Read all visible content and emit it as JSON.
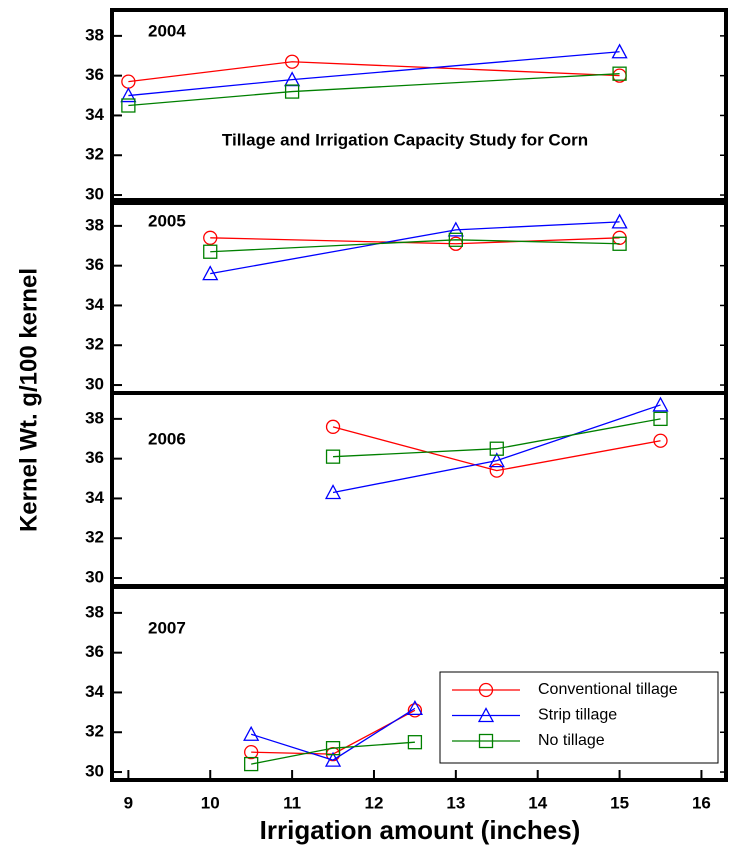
{
  "chart_data": [
    {
      "type": "line",
      "title": "Tillage and Irrigation Capacity Study for Corn",
      "label": "2004",
      "ylabel": "Kernel Wt. g/100 kernel",
      "xlim": [
        8.8,
        16.3
      ],
      "ylim": [
        29.6,
        39.3
      ],
      "yticks": [
        30,
        32,
        34,
        36,
        38
      ],
      "series": [
        {
          "color": "#ff0000",
          "marker": "circle",
          "x": [
            9,
            11,
            15
          ],
          "values": [
            35.7,
            36.7,
            36.0
          ]
        },
        {
          "color": "#0000ff",
          "marker": "triangle",
          "x": [
            9,
            11,
            15
          ],
          "values": [
            35.0,
            35.8,
            37.2
          ]
        },
        {
          "color": "#008000",
          "marker": "square",
          "x": [
            9,
            11,
            15
          ],
          "values": [
            34.5,
            35.2,
            36.1
          ]
        }
      ]
    },
    {
      "type": "line",
      "label": "2005",
      "xlim": [
        8.8,
        16.3
      ],
      "ylim": [
        29.6,
        39.3
      ],
      "yticks": [
        30,
        32,
        34,
        36,
        38
      ],
      "series": [
        {
          "color": "#ff0000",
          "marker": "circle",
          "x": [
            10,
            13,
            15
          ],
          "values": [
            37.4,
            37.1,
            37.4
          ]
        },
        {
          "color": "#0000ff",
          "marker": "triangle",
          "x": [
            10,
            13,
            15
          ],
          "values": [
            35.6,
            37.8,
            38.2
          ]
        },
        {
          "color": "#008000",
          "marker": "square",
          "x": [
            10,
            13,
            15
          ],
          "values": [
            36.7,
            37.3,
            37.1
          ]
        }
      ]
    },
    {
      "type": "line",
      "label": "2006",
      "xlim": [
        8.8,
        16.3
      ],
      "ylim": [
        29.6,
        39.3
      ],
      "yticks": [
        30,
        32,
        34,
        36,
        38
      ],
      "series": [
        {
          "color": "#ff0000",
          "marker": "circle",
          "x": [
            11.5,
            13.5,
            15.5
          ],
          "values": [
            37.6,
            35.4,
            36.9
          ]
        },
        {
          "color": "#0000ff",
          "marker": "triangle",
          "x": [
            11.5,
            13.5,
            15.5
          ],
          "values": [
            34.3,
            35.9,
            38.7
          ]
        },
        {
          "color": "#008000",
          "marker": "square",
          "x": [
            11.5,
            13.5,
            15.5
          ],
          "values": [
            36.1,
            36.5,
            38.0
          ]
        }
      ]
    },
    {
      "type": "line",
      "label": "2007",
      "xlabel": "Irrigation amount (inches)",
      "xlim": [
        8.8,
        16.3
      ],
      "ylim": [
        29.6,
        39.3
      ],
      "yticks": [
        30,
        32,
        34,
        36,
        38
      ],
      "xticks": [
        9,
        10,
        11,
        12,
        13,
        14,
        15,
        16
      ],
      "legend": "lower right",
      "series": [
        {
          "name": "Conventional tillage",
          "color": "#ff0000",
          "marker": "circle",
          "x": [
            10.5,
            11.5,
            12.5
          ],
          "values": [
            31.0,
            30.9,
            33.1
          ]
        },
        {
          "name": "Strip tillage",
          "color": "#0000ff",
          "marker": "triangle",
          "x": [
            10.5,
            11.5,
            12.5
          ],
          "values": [
            31.9,
            30.6,
            33.2
          ]
        },
        {
          "name": "No tillage",
          "color": "#008000",
          "marker": "square",
          "x": [
            10.5,
            11.5,
            12.5
          ],
          "values": [
            30.4,
            31.2,
            31.5
          ]
        }
      ]
    }
  ]
}
